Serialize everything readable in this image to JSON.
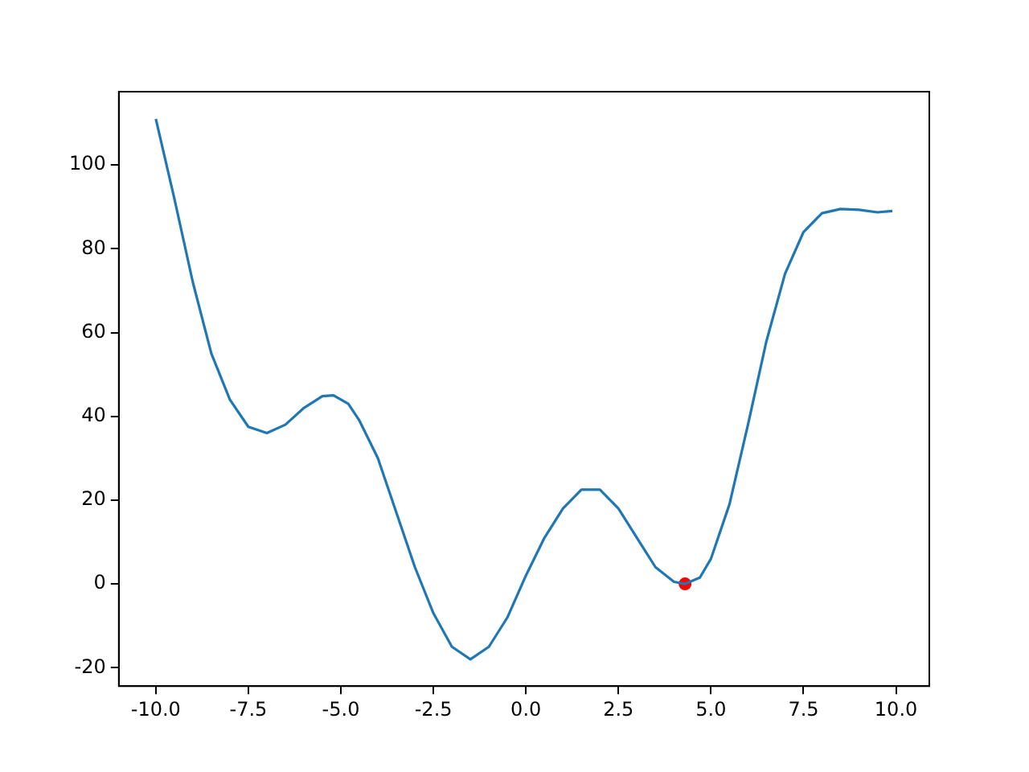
{
  "chart_data": {
    "type": "line",
    "grid": false,
    "legend": false,
    "xlim": [
      -11.0,
      10.9
    ],
    "ylim": [
      -24.4,
      117.5
    ],
    "xticks": [
      {
        "value": -10,
        "label": "-10.0"
      },
      {
        "value": -7.5,
        "label": "-7.5"
      },
      {
        "value": -5,
        "label": "-5.0"
      },
      {
        "value": -2.5,
        "label": "-2.5"
      },
      {
        "value": 0,
        "label": "0.0"
      },
      {
        "value": 2.5,
        "label": "2.5"
      },
      {
        "value": 5,
        "label": "5.0"
      },
      {
        "value": 7.5,
        "label": "7.5"
      },
      {
        "value": 10,
        "label": "10.0"
      }
    ],
    "yticks": [
      -20,
      0,
      20,
      40,
      60,
      80,
      100
    ],
    "series": [
      {
        "type": "line",
        "color": "#1f77b4",
        "marker": "none",
        "x": [
          -10,
          -9.5,
          -9,
          -8.5,
          -8,
          -7.5,
          -7,
          -6.5,
          -6,
          -5.5,
          -5.2,
          -4.8,
          -4.5,
          -4,
          -3.5,
          -3,
          -2.5,
          -2,
          -1.5,
          -1,
          -0.5,
          0,
          0.5,
          1,
          1.5,
          2,
          2.5,
          3,
          3.5,
          4,
          4.3,
          4.7,
          5,
          5.5,
          6,
          6.5,
          7,
          7.5,
          8,
          8.5,
          9,
          9.5,
          9.9
        ],
        "values": [
          111,
          92,
          72,
          55,
          44,
          37.5,
          36,
          38,
          42,
          44.8,
          45,
          43,
          39,
          30,
          17,
          4,
          -7,
          -15,
          -18,
          -15,
          -8,
          2,
          11,
          18,
          22.5,
          22.5,
          18,
          11,
          4,
          0.5,
          0,
          1.5,
          6,
          19,
          38,
          58,
          74,
          84,
          88.5,
          89.5,
          89.3,
          88.7,
          89
        ]
      },
      {
        "type": "scatter",
        "color": "#ff0000",
        "marker": "circle",
        "x": [
          4.3
        ],
        "values": [
          0
        ]
      }
    ]
  }
}
